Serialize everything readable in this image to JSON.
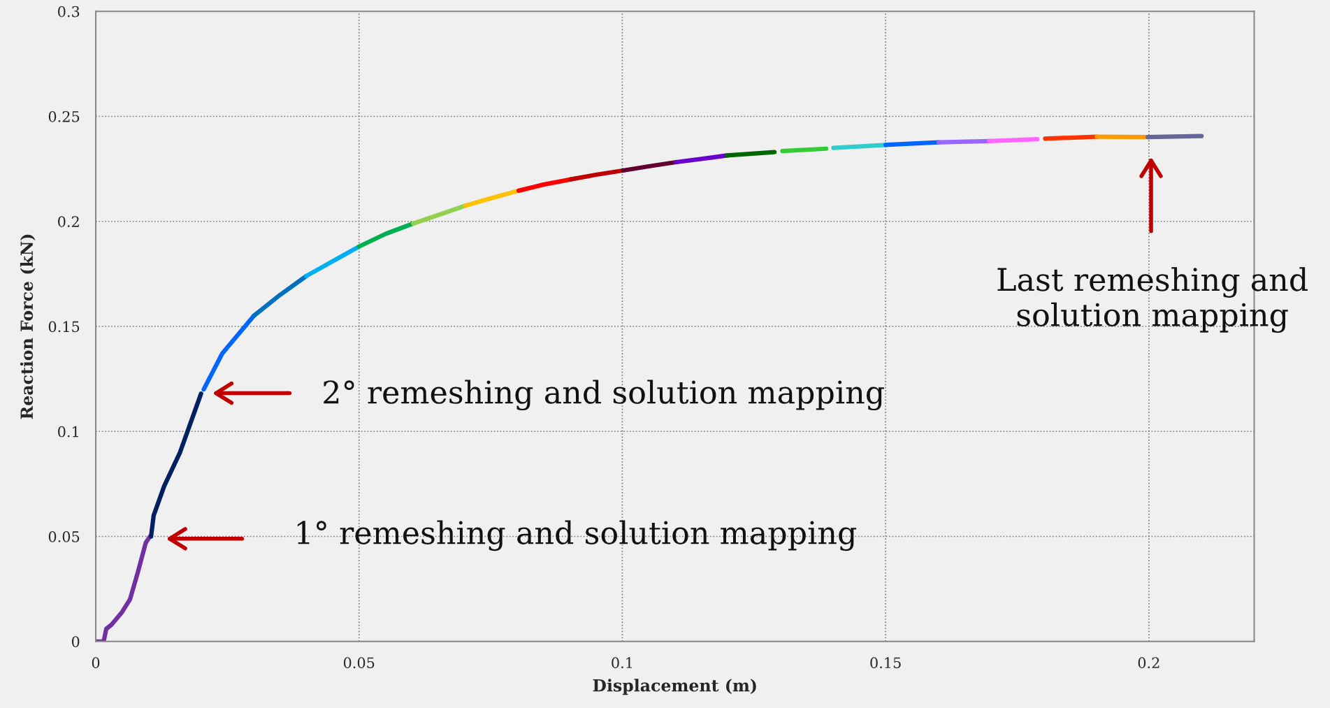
{
  "chart_data": {
    "type": "line",
    "xlabel": "Displacement (m)",
    "ylabel": "Reaction Force (kN)",
    "xlim": [
      0,
      0.22
    ],
    "xticks": [
      0,
      0.05,
      0.1,
      0.15,
      0.2
    ],
    "ylim": [
      0,
      0.3
    ],
    "yticks": [
      0,
      0.05,
      0.1,
      0.15,
      0.2,
      0.25,
      0.3
    ],
    "grid": true,
    "legend": false,
    "marker": "none",
    "line_style": "solid",
    "series": [
      {
        "color": "#7030a0",
        "x": [
          0,
          0.0015,
          0.002,
          0.003,
          0.005,
          0.0065,
          0.008,
          0.0095,
          0.0103
        ],
        "values": [
          0,
          0,
          0.006,
          0.008,
          0.014,
          0.02,
          0.033,
          0.047,
          0.05
        ]
      },
      {
        "color": "#002060",
        "x": [
          0.0105,
          0.011,
          0.013,
          0.016,
          0.02
        ],
        "values": [
          0.05,
          0.06,
          0.074,
          0.09,
          0.118
        ]
      },
      {
        "color": "#0066ff",
        "x": [
          0.0205,
          0.024,
          0.03
        ],
        "values": [
          0.12,
          0.137,
          0.155
        ]
      },
      {
        "color": "#0070c0",
        "x": [
          0.03,
          0.035,
          0.04
        ],
        "values": [
          0.155,
          0.165,
          0.174
        ]
      },
      {
        "color": "#00b0f0",
        "x": [
          0.04,
          0.045,
          0.05
        ],
        "values": [
          0.174,
          0.181,
          0.188
        ]
      },
      {
        "color": "#00b050",
        "x": [
          0.05,
          0.055,
          0.0603
        ],
        "values": [
          0.188,
          0.194,
          0.199
        ]
      },
      {
        "color": "#92d050",
        "x": [
          0.0603,
          0.065,
          0.0702
        ],
        "values": [
          0.199,
          0.203,
          0.2075
        ]
      },
      {
        "color": "#ffc000",
        "x": [
          0.0702,
          0.075,
          0.0803
        ],
        "values": [
          0.2075,
          0.211,
          0.2146
        ]
      },
      {
        "color": "#ff0000",
        "x": [
          0.0803,
          0.085,
          0.0902
        ],
        "values": [
          0.2146,
          0.2175,
          0.22
        ]
      },
      {
        "color": "#c00000",
        "x": [
          0.0902,
          0.095,
          0.1001
        ],
        "values": [
          0.22,
          0.2222,
          0.2242
        ]
      },
      {
        "color": "#600030",
        "x": [
          0.1001,
          0.105,
          0.1102
        ],
        "values": [
          0.2242,
          0.2262,
          0.2282
        ]
      },
      {
        "color": "#6600cc",
        "x": [
          0.1102,
          0.115,
          0.1199
        ],
        "values": [
          0.2282,
          0.2297,
          0.2314
        ]
      },
      {
        "color": "#006600",
        "x": [
          0.1199,
          0.1289
        ],
        "values": [
          0.2314,
          0.233
        ]
      },
      {
        "color": "#33cc33",
        "x": [
          0.1304,
          0.1387
        ],
        "values": [
          0.2335,
          0.2346
        ]
      },
      {
        "color": "#33cccc",
        "x": [
          0.1401,
          0.15
        ],
        "values": [
          0.235,
          0.2364
        ]
      },
      {
        "color": "#0066ff",
        "x": [
          0.15,
          0.1601
        ],
        "values": [
          0.2364,
          0.2376
        ]
      },
      {
        "color": "#9966ff",
        "x": [
          0.1601,
          0.1697
        ],
        "values": [
          0.2376,
          0.2382
        ]
      },
      {
        "color": "#ff66ff",
        "x": [
          0.1697,
          0.1788
        ],
        "values": [
          0.2382,
          0.2391
        ]
      },
      {
        "color": "#ff3300",
        "x": [
          0.1803,
          0.1901
        ],
        "values": [
          0.2394,
          0.2403
        ]
      },
      {
        "color": "#ff9900",
        "x": [
          0.1901,
          0.1998
        ],
        "values": [
          0.2403,
          0.2401
        ]
      },
      {
        "color": "#666699",
        "x": [
          0.1998,
          0.21
        ],
        "values": [
          0.2401,
          0.2406
        ]
      }
    ],
    "annotations": [
      "1° remeshing and solution mapping",
      "2° remeshing and solution mapping",
      "Last remeshing and\nsolution mapping"
    ]
  }
}
